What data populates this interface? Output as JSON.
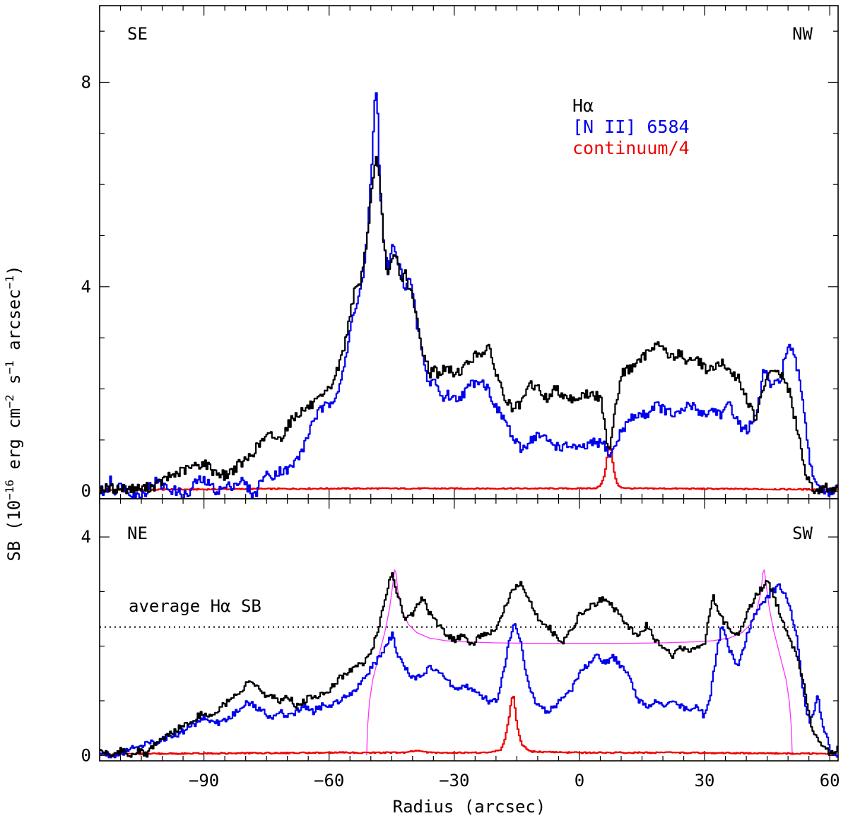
{
  "chart_data": [
    {
      "type": "line",
      "panel": "top",
      "xlim": [
        -115,
        62
      ],
      "ylim": [
        -0.15,
        9.5
      ],
      "yticks_major": [
        0,
        4,
        8
      ],
      "yticks_minor_step": 1,
      "xticks_major": [
        -90,
        -60,
        -30,
        0,
        30,
        60
      ],
      "xticks_minor_step": 5,
      "corner_labels": {
        "left": "SE",
        "right": "NW"
      },
      "legend": [
        {
          "label": "Hα",
          "color": "#000000"
        },
        {
          "label": "[N II] 6584",
          "color": "#0000ee"
        },
        {
          "label": "continuum/4",
          "color": "#ee0000"
        }
      ],
      "series": [
        {
          "name": "Hα",
          "color": "#000000",
          "x": [
            -115,
            -110,
            -105,
            -102,
            -100,
            -98,
            -95,
            -92,
            -90,
            -88,
            -85,
            -82,
            -80,
            -78,
            -76,
            -74,
            -72,
            -70,
            -68,
            -66,
            -64,
            -62,
            -60,
            -58,
            -56,
            -55,
            -54,
            -53,
            -52,
            -51,
            -50,
            -49.5,
            -49,
            -48,
            -47,
            -46,
            -45,
            -44,
            -43,
            -42,
            -41,
            -40,
            -39,
            -38,
            -37,
            -36,
            -35,
            -34,
            -32,
            -30,
            -28,
            -26,
            -24,
            -22,
            -20,
            -18,
            -16,
            -14,
            -12,
            -10,
            -8,
            -6,
            -4,
            -2,
            0,
            2,
            4,
            5,
            6,
            7,
            8,
            9,
            10,
            12,
            14,
            16,
            18,
            20,
            22,
            24,
            26,
            28,
            30,
            32,
            34,
            36,
            38,
            40,
            42,
            44,
            46,
            48,
            50,
            51,
            52,
            53,
            54,
            55,
            56,
            57,
            58,
            60,
            62
          ],
          "y": [
            0.05,
            0.05,
            0.05,
            0.1,
            0.2,
            0.3,
            0.4,
            0.5,
            0.55,
            0.4,
            0.3,
            0.5,
            0.6,
            0.8,
            1.0,
            1.1,
            1.0,
            1.3,
            1.5,
            1.6,
            1.7,
            1.8,
            2.0,
            2.4,
            3.0,
            3.6,
            3.9,
            4.0,
            4.4,
            5.0,
            5.8,
            6.2,
            6.6,
            6.0,
            4.8,
            4.2,
            4.5,
            4.6,
            4.1,
            4.3,
            4.0,
            3.7,
            3.3,
            2.8,
            2.6,
            2.3,
            2.4,
            2.3,
            2.4,
            2.3,
            2.4,
            2.6,
            2.7,
            2.8,
            2.3,
            1.8,
            1.6,
            1.7,
            2.1,
            2.0,
            1.8,
            2.0,
            1.9,
            1.8,
            1.85,
            1.9,
            1.85,
            1.8,
            1.2,
            0.8,
            1.4,
            1.9,
            2.3,
            2.4,
            2.5,
            2.7,
            2.9,
            2.8,
            2.6,
            2.7,
            2.5,
            2.6,
            2.4,
            2.4,
            2.5,
            2.3,
            2.2,
            1.8,
            1.4,
            2.0,
            2.4,
            2.3,
            2.0,
            1.6,
            1.2,
            0.8,
            0.4,
            0.2,
            0.05,
            0.0,
            0.05,
            0.05,
            0.05
          ]
        },
        {
          "name": "[N II] 6584",
          "color": "#0000ee",
          "x": [
            -115,
            -113,
            -112.5,
            -112,
            -110,
            -106,
            -104,
            -102,
            -100,
            -97,
            -94,
            -92,
            -90,
            -87,
            -84,
            -81,
            -78,
            -76,
            -74,
            -72,
            -70,
            -68,
            -66,
            -64,
            -62,
            -60,
            -58,
            -56,
            -55,
            -54,
            -53,
            -52,
            -51,
            -50,
            -49.5,
            -49,
            -48.5,
            -48,
            -47,
            -46,
            -45,
            -44,
            -43,
            -42,
            -41,
            -40,
            -39,
            -38,
            -37,
            -36,
            -35,
            -34,
            -33,
            -32,
            -30,
            -28,
            -26,
            -24,
            -22,
            -20,
            -18,
            -16,
            -14,
            -12,
            -10,
            -8,
            -6,
            -4,
            -2,
            0,
            2,
            4,
            6,
            7,
            8,
            9,
            10,
            12,
            14,
            16,
            18,
            20,
            22,
            24,
            26,
            28,
            30,
            32,
            34,
            36,
            38,
            40,
            42,
            43,
            44,
            46,
            48,
            49,
            50,
            51,
            52,
            53,
            54,
            55,
            56,
            58,
            60,
            62
          ],
          "y": [
            0.0,
            0.0,
            0.4,
            0.0,
            0.1,
            -0.1,
            0.0,
            0.2,
            0.1,
            0.0,
            -0.1,
            0.2,
            0.2,
            0.0,
            0.1,
            0.2,
            -0.1,
            0.3,
            0.3,
            0.4,
            0.4,
            0.6,
            0.9,
            1.4,
            1.6,
            1.7,
            2.0,
            2.6,
            3.2,
            3.6,
            3.8,
            4.2,
            5.0,
            6.2,
            7.2,
            7.9,
            7.4,
            6.0,
            4.8,
            4.3,
            4.8,
            4.6,
            4.3,
            4.0,
            4.2,
            3.8,
            3.2,
            2.8,
            2.3,
            2.1,
            2.2,
            2.0,
            1.8,
            1.9,
            1.8,
            1.9,
            2.1,
            2.2,
            2.0,
            1.6,
            1.4,
            1.0,
            0.8,
            1.0,
            1.1,
            1.0,
            0.9,
            0.85,
            0.9,
            0.8,
            0.9,
            0.95,
            0.9,
            0.7,
            0.8,
            1.0,
            1.2,
            1.4,
            1.5,
            1.5,
            1.7,
            1.6,
            1.5,
            1.5,
            1.7,
            1.6,
            1.5,
            1.6,
            1.5,
            1.7,
            1.3,
            1.2,
            1.4,
            1.8,
            2.4,
            2.0,
            2.2,
            2.6,
            2.8,
            2.7,
            2.4,
            2.0,
            1.4,
            0.6,
            0.3,
            0.0,
            -0.05,
            0.05
          ]
        },
        {
          "name": "continuum/4",
          "color": "#ee0000",
          "x": [
            -115,
            -100,
            -80,
            -60,
            -40,
            -20,
            0,
            4,
            5,
            6,
            6.5,
            7,
            7.5,
            8,
            8.5,
            9,
            10,
            12,
            20,
            40,
            62
          ],
          "y": [
            0.02,
            0.03,
            0.04,
            0.05,
            0.05,
            0.05,
            0.05,
            0.06,
            0.12,
            0.35,
            0.7,
            0.9,
            0.8,
            0.45,
            0.25,
            0.12,
            0.07,
            0.05,
            0.05,
            0.04,
            0.03
          ]
        }
      ]
    },
    {
      "type": "line",
      "panel": "bottom",
      "xlim": [
        -115,
        62
      ],
      "ylim": [
        -0.1,
        4.7
      ],
      "yticks_major": [
        0,
        4
      ],
      "yticks_minor_step": 1,
      "xticks_major": [
        -90,
        -60,
        -30,
        0,
        30,
        60
      ],
      "xticks_minor_step": 5,
      "corner_labels": {
        "left": "NE",
        "right": "SW"
      },
      "reference_line": {
        "label": "average Hα SB",
        "y": 2.35,
        "style": "dotted"
      },
      "series": [
        {
          "name": "Hα",
          "color": "#000000",
          "x": [
            -115,
            -112,
            -110,
            -108,
            -106,
            -104,
            -102,
            -100,
            -98,
            -96,
            -94,
            -92,
            -90,
            -88,
            -86,
            -84,
            -82,
            -80,
            -78,
            -76,
            -74,
            -72,
            -70,
            -68,
            -66,
            -64,
            -62,
            -60,
            -58,
            -56,
            -54,
            -52,
            -50,
            -48,
            -47,
            -46,
            -45,
            -44,
            -43,
            -42,
            -40,
            -38,
            -36,
            -34,
            -32,
            -30,
            -28,
            -26,
            -24,
            -22,
            -20,
            -18,
            -17,
            -16,
            -15,
            -14,
            -13,
            -12,
            -10,
            -8,
            -6,
            -4,
            -2,
            0,
            2,
            4,
            6,
            8,
            10,
            12,
            14,
            16,
            18,
            20,
            22,
            24,
            26,
            28,
            30,
            31,
            32,
            33,
            34,
            36,
            38,
            40,
            42,
            44,
            45,
            46,
            48,
            50,
            52,
            54,
            55,
            56,
            57,
            58,
            60,
            61,
            62
          ],
          "y": [
            0.1,
            0.0,
            0.1,
            0.0,
            0.1,
            0.0,
            0.2,
            0.3,
            0.4,
            0.5,
            0.6,
            0.7,
            0.8,
            0.7,
            0.9,
            1.0,
            1.1,
            1.3,
            1.3,
            1.1,
            1.1,
            1.0,
            1.1,
            0.9,
            1.0,
            1.1,
            1.1,
            1.2,
            1.4,
            1.5,
            1.6,
            1.7,
            1.9,
            2.4,
            2.8,
            3.1,
            3.3,
            3.0,
            2.8,
            2.5,
            2.6,
            2.9,
            2.6,
            2.4,
            2.2,
            2.1,
            2.2,
            2.0,
            2.2,
            2.2,
            2.3,
            2.7,
            2.9,
            3.0,
            3.1,
            3.2,
            2.9,
            2.8,
            2.5,
            2.4,
            2.2,
            2.1,
            2.3,
            2.6,
            2.7,
            2.8,
            2.9,
            2.7,
            2.5,
            2.3,
            2.2,
            2.4,
            2.1,
            2.0,
            1.8,
            2.0,
            1.9,
            2.0,
            2.1,
            2.6,
            2.9,
            2.7,
            2.5,
            2.3,
            2.2,
            2.6,
            2.9,
            3.1,
            3.2,
            3.0,
            2.6,
            2.2,
            1.8,
            1.2,
            0.7,
            0.4,
            0.3,
            0.2,
            0.05,
            0.0,
            0.3
          ]
        },
        {
          "name": "[N II] 6584",
          "color": "#0000ee",
          "x": [
            -115,
            -112,
            -110,
            -108,
            -106,
            -104,
            -102,
            -100,
            -98,
            -96,
            -94,
            -92,
            -90,
            -88,
            -86,
            -84,
            -82,
            -80,
            -78,
            -76,
            -74,
            -72,
            -70,
            -68,
            -66,
            -64,
            -62,
            -60,
            -58,
            -56,
            -54,
            -52,
            -50,
            -48,
            -46,
            -45,
            -44,
            -42,
            -40,
            -38,
            -36,
            -34,
            -32,
            -30,
            -28,
            -26,
            -24,
            -22,
            -20,
            -18,
            -17,
            -16,
            -15,
            -14,
            -13,
            -12,
            -10,
            -8,
            -6,
            -4,
            -2,
            0,
            2,
            4,
            6,
            8,
            10,
            12,
            14,
            16,
            18,
            20,
            22,
            24,
            26,
            28,
            30,
            31,
            32,
            33,
            34,
            35,
            36,
            38,
            40,
            42,
            44,
            46,
            48,
            50,
            52,
            53,
            54,
            55,
            56,
            57,
            58,
            60,
            62
          ],
          "y": [
            0.05,
            0.0,
            0.05,
            0.1,
            0.2,
            0.2,
            0.25,
            0.3,
            0.35,
            0.4,
            0.5,
            0.6,
            0.7,
            0.6,
            0.6,
            0.7,
            0.8,
            1.0,
            0.9,
            0.8,
            0.7,
            0.8,
            0.7,
            0.8,
            0.9,
            0.8,
            0.9,
            0.9,
            1.0,
            1.1,
            1.2,
            1.4,
            1.6,
            1.8,
            2.1,
            2.2,
            1.9,
            1.6,
            1.4,
            1.5,
            1.6,
            1.5,
            1.4,
            1.2,
            1.3,
            1.2,
            1.1,
            1.0,
            1.0,
            1.6,
            2.1,
            2.4,
            2.3,
            2.0,
            1.5,
            1.2,
            0.9,
            0.8,
            0.9,
            1.1,
            1.2,
            1.5,
            1.7,
            1.8,
            1.7,
            1.8,
            1.6,
            1.4,
            1.0,
            0.9,
            1.0,
            0.9,
            1.0,
            0.9,
            0.8,
            0.9,
            0.7,
            1.0,
            1.5,
            2.0,
            2.4,
            2.1,
            1.9,
            1.6,
            2.2,
            2.6,
            2.8,
            3.0,
            3.1,
            2.8,
            2.2,
            1.4,
            0.9,
            0.6,
            0.8,
            1.1,
            0.6,
            0.1,
            0.0
          ]
        },
        {
          "name": "continuum/4",
          "color": "#ee0000",
          "x": [
            -115,
            -100,
            -80,
            -60,
            -42,
            -39,
            -36,
            -30,
            -22,
            -19,
            -18,
            -17,
            -16.5,
            -16,
            -15.5,
            -15,
            -14,
            -12,
            0,
            20,
            40,
            62
          ],
          "y": [
            0.02,
            0.03,
            0.04,
            0.05,
            0.05,
            0.09,
            0.05,
            0.05,
            0.05,
            0.1,
            0.3,
            0.7,
            1.0,
            1.1,
            0.8,
            0.5,
            0.2,
            0.07,
            0.05,
            0.05,
            0.04,
            0.03
          ]
        },
        {
          "name": "model",
          "color": "#ff33ff",
          "x": [
            -51,
            -50.8,
            -50.3,
            -49.5,
            -48.5,
            -47.5,
            -46.5,
            -45.5,
            -44.8,
            -44.3,
            -44.0,
            -43.5,
            -42.5,
            -41,
            -39,
            -36,
            -32,
            -28,
            -20,
            -10,
            0,
            10,
            20,
            28,
            32,
            36,
            39,
            41,
            42.5,
            43.5,
            44.0,
            44.3,
            44.8,
            45.5,
            46.5,
            47.5,
            48.5,
            49.5,
            50.3,
            50.8,
            51
          ],
          "y": [
            0.0,
            0.5,
            1.0,
            1.4,
            1.7,
            2.0,
            2.3,
            2.7,
            3.1,
            3.4,
            3.35,
            3.0,
            2.65,
            2.4,
            2.25,
            2.15,
            2.1,
            2.08,
            2.06,
            2.05,
            2.05,
            2.05,
            2.06,
            2.08,
            2.1,
            2.15,
            2.25,
            2.4,
            2.65,
            3.0,
            3.35,
            3.4,
            3.1,
            2.7,
            2.3,
            2.0,
            1.7,
            1.4,
            1.0,
            0.5,
            0.0
          ]
        }
      ]
    }
  ],
  "axes": {
    "xlabel": "Radius (arcsec)",
    "ylabel_parts": {
      "pre": "SB (10",
      "exp1": "−16",
      "mid1": " erg cm",
      "exp2": "−2",
      "mid2": " s",
      "exp3": "−1",
      "post1": " arcsec",
      "exp4": "−1",
      "post2": ")"
    }
  },
  "colors": {
    "halpha": "#000000",
    "nii": "#0000ee",
    "continuum": "#ee0000",
    "model": "#ff33ff"
  }
}
